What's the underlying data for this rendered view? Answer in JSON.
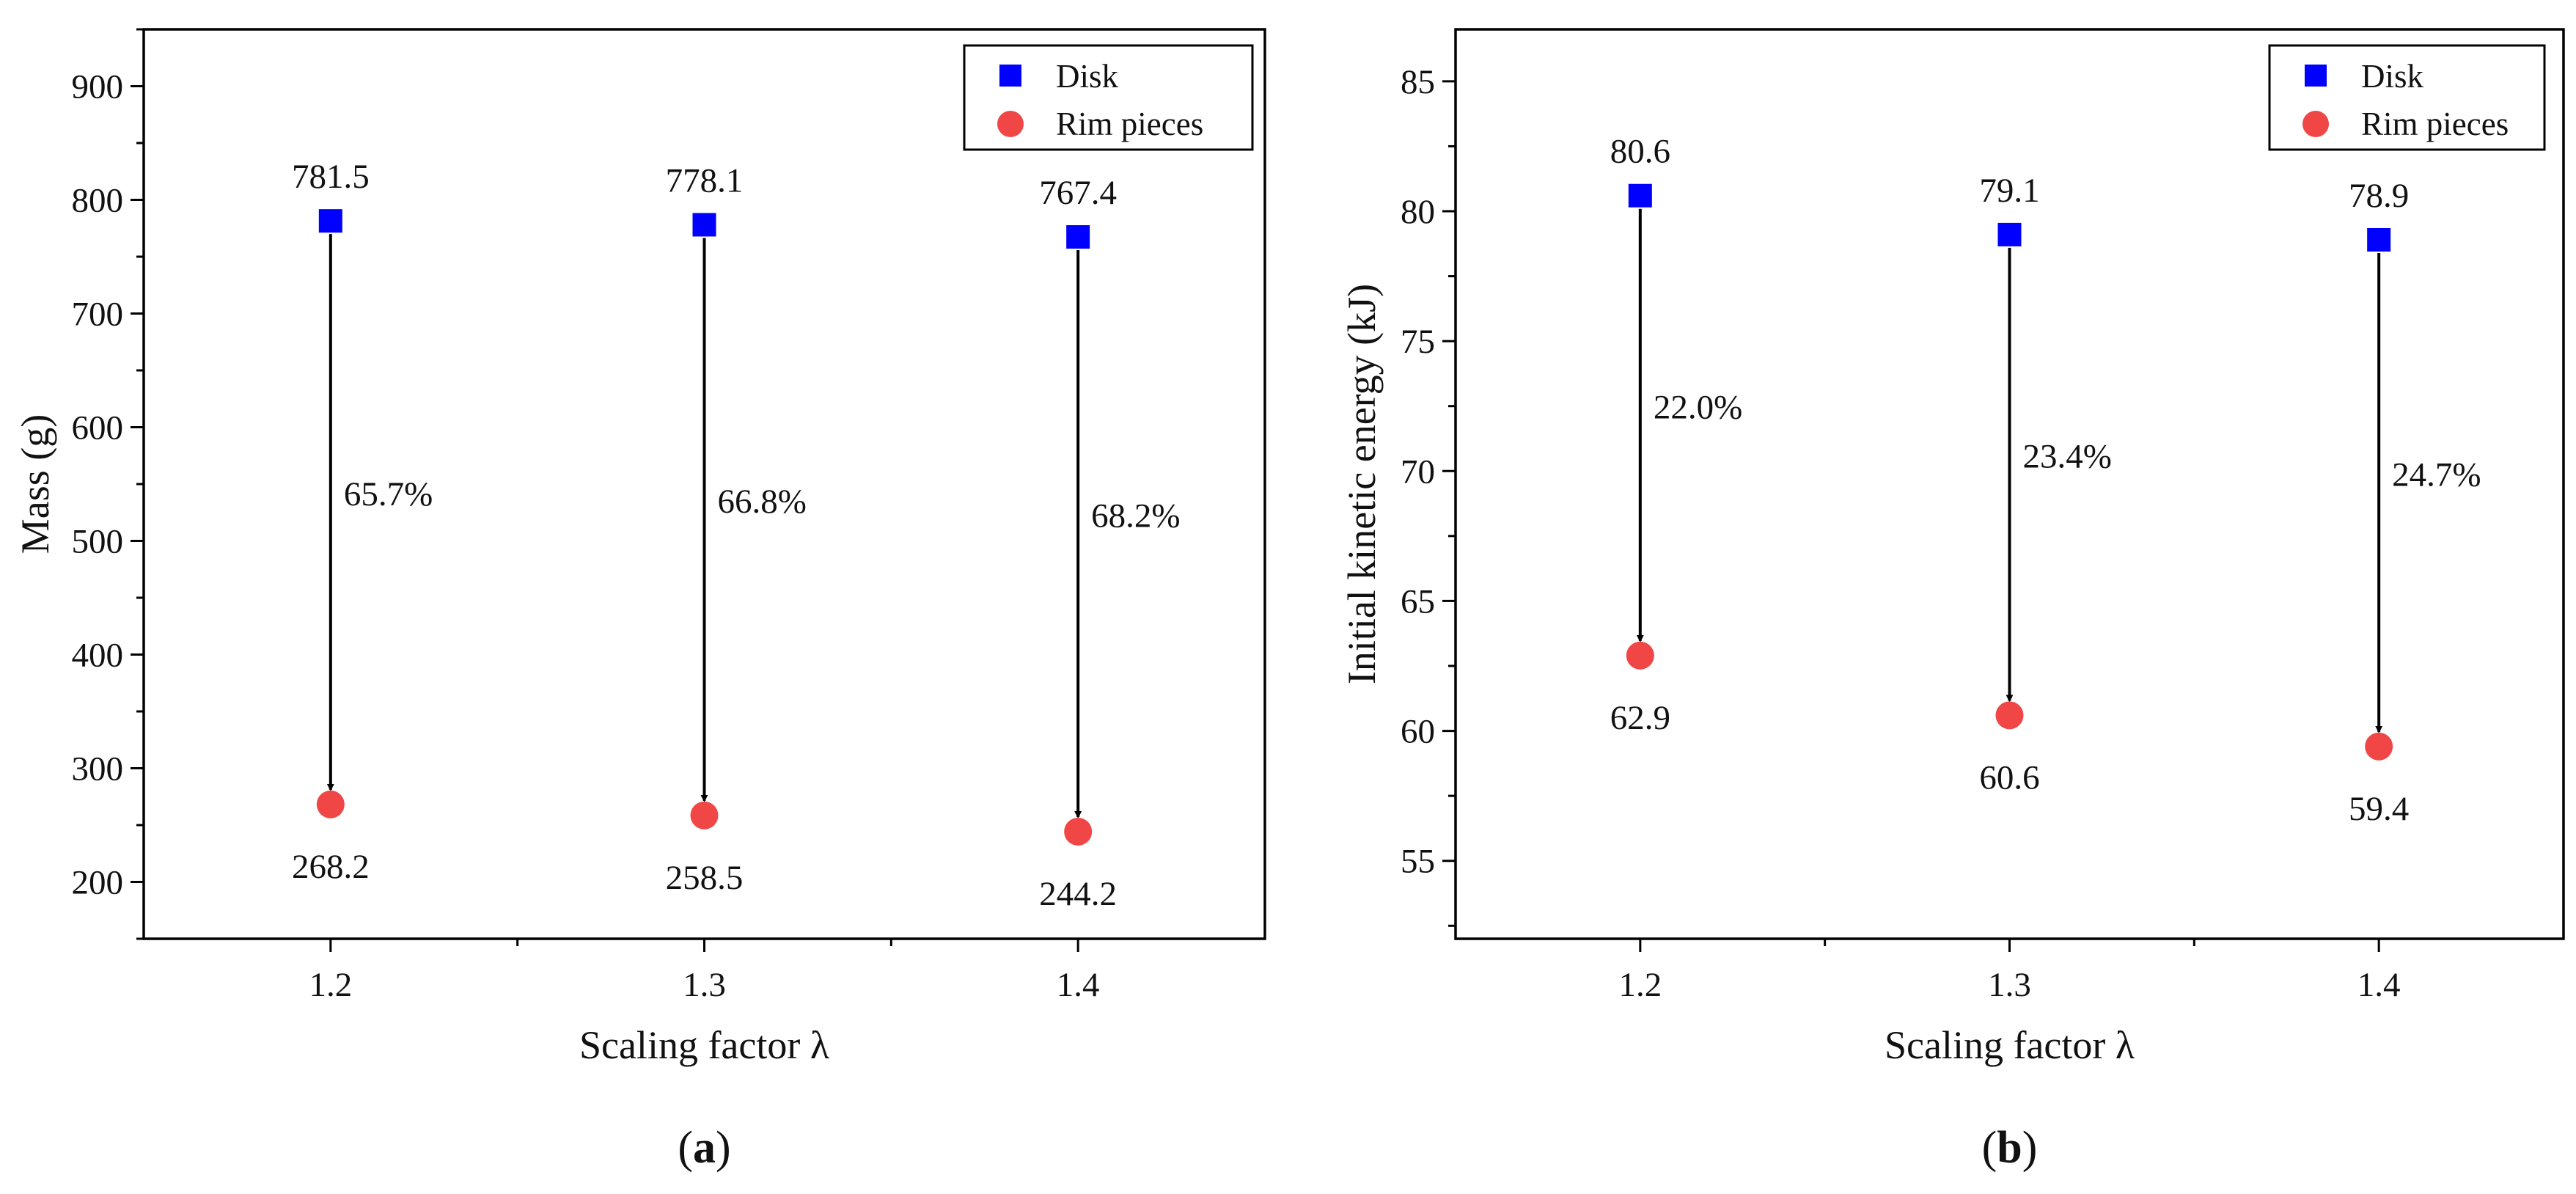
{
  "chart_data": [
    {
      "type": "scatter",
      "panel_label": {
        "open": "(",
        "letter": "a",
        "close": ")"
      },
      "xlabel": "Scaling factor λ",
      "ylabel": "Mass (g)",
      "categories": [
        "1.2",
        "1.3",
        "1.4"
      ],
      "xlim": [
        0.5,
        3.5
      ],
      "ylim": [
        150,
        950
      ],
      "yticks": [
        200,
        300,
        400,
        500,
        600,
        700,
        800,
        900
      ],
      "legend_position": "top-right",
      "series": [
        {
          "name": "Disk",
          "marker": "square",
          "color": "#0000ff",
          "values": [
            781.5,
            778.1,
            767.4
          ],
          "labels": [
            "781.5",
            "778.1",
            "767.4"
          ]
        },
        {
          "name": "Rim pieces",
          "marker": "circle",
          "color": "#f04646",
          "values": [
            268.2,
            258.5,
            244.2
          ],
          "labels": [
            "268.2",
            "258.5",
            "244.2"
          ]
        }
      ],
      "annotations": [
        "65.7%",
        "66.8%",
        "68.2%"
      ]
    },
    {
      "type": "scatter",
      "panel_label": {
        "open": "(",
        "letter": "b",
        "close": ")"
      },
      "xlabel": "Scaling factor λ",
      "ylabel": "Initial kinetic energy (kJ)",
      "categories": [
        "1.2",
        "1.3",
        "1.4"
      ],
      "xlim": [
        0.5,
        3.5
      ],
      "ylim": [
        52,
        87
      ],
      "yticks": [
        55,
        60,
        65,
        70,
        75,
        80,
        85
      ],
      "legend_position": "top-right",
      "series": [
        {
          "name": "Disk",
          "marker": "square",
          "color": "#0000ff",
          "values": [
            80.6,
            79.1,
            78.9
          ],
          "labels": [
            "80.6",
            "79.1",
            "78.9"
          ]
        },
        {
          "name": "Rim pieces",
          "marker": "circle",
          "color": "#f04646",
          "values": [
            62.9,
            60.6,
            59.4
          ],
          "labels": [
            "62.9",
            "60.6",
            "59.4"
          ]
        }
      ],
      "annotations": [
        "22.0%",
        "23.4%",
        "24.7%"
      ]
    }
  ]
}
